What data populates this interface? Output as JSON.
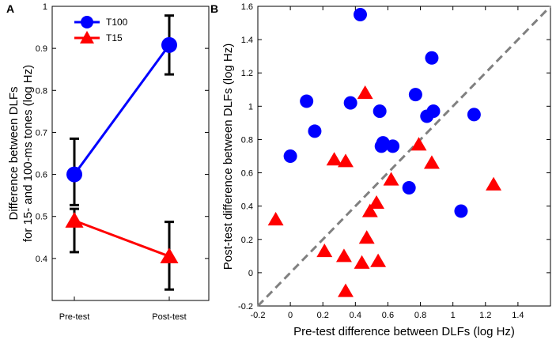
{
  "chart_data": [
    {
      "panel": "A",
      "type": "line",
      "categories": [
        "Pre-test",
        "Post-test"
      ],
      "ylabel_line1": "Difference between DLFs",
      "ylabel_line2": "for 15- and 100-ms tones (log Hz)",
      "ylim": [
        0.3,
        1.0
      ],
      "yticks": [
        "0.4",
        "0.5",
        "0.6",
        "0.7",
        "0.8",
        "0.9",
        "1"
      ],
      "tick_values": [
        0.4,
        0.5,
        0.6,
        0.7,
        0.8,
        0.9,
        1.0
      ],
      "series": [
        {
          "name": "T100",
          "color": "#0000ff",
          "marker": "circle",
          "values": [
            0.6,
            0.908
          ],
          "err_low": [
            0.527,
            0.838
          ],
          "err_high": [
            0.685,
            0.978
          ]
        },
        {
          "name": "T15",
          "color": "#ff0000",
          "marker": "triangle",
          "values": [
            0.49,
            0.405
          ],
          "err_low": [
            0.415,
            0.326
          ],
          "err_high": [
            0.518,
            0.487
          ]
        }
      ]
    },
    {
      "panel": "B",
      "type": "scatter",
      "xlabel": "Pre-test difference between DLFs (log Hz)",
      "ylabel": "Post-test difference between DLFs (log Hz)",
      "xlim": [
        -0.2,
        1.6
      ],
      "ylim": [
        -0.2,
        1.6
      ],
      "xticks": [
        "-0.2",
        "0",
        "0.2",
        "0.4",
        "0.6",
        "0.8",
        "1",
        "1.2",
        "1.4"
      ],
      "xtick_values": [
        -0.2,
        0,
        0.2,
        0.4,
        0.6,
        0.8,
        1.0,
        1.2,
        1.4
      ],
      "yticks": [
        "-0.2",
        "0",
        "0.2",
        "0.4",
        "0.6",
        "0.8",
        "1",
        "1.2",
        "1.4",
        "1.6"
      ],
      "ytick_values": [
        -0.2,
        0,
        0.2,
        0.4,
        0.6,
        0.8,
        1.0,
        1.2,
        1.4,
        1.6
      ],
      "identity_line": true,
      "series": [
        {
          "name": "T100",
          "color": "#0000ff",
          "marker": "circle",
          "points": [
            [
              0.43,
              1.55
            ],
            [
              0.87,
              1.29
            ],
            [
              0.1,
              1.03
            ],
            [
              0.37,
              1.02
            ],
            [
              0.77,
              1.07
            ],
            [
              0.55,
              0.97
            ],
            [
              0.88,
              0.97
            ],
            [
              0.84,
              0.94
            ],
            [
              1.13,
              0.95
            ],
            [
              0.15,
              0.85
            ],
            [
              0.0,
              0.7
            ],
            [
              0.57,
              0.78
            ],
            [
              0.56,
              0.76
            ],
            [
              0.63,
              0.76
            ],
            [
              0.73,
              0.51
            ],
            [
              1.05,
              0.37
            ]
          ]
        },
        {
          "name": "T15",
          "color": "#ff0000",
          "marker": "triangle",
          "points": [
            [
              0.46,
              1.08
            ],
            [
              0.27,
              0.68
            ],
            [
              0.34,
              0.67
            ],
            [
              0.79,
              0.77
            ],
            [
              0.87,
              0.66
            ],
            [
              0.62,
              0.56
            ],
            [
              1.25,
              0.53
            ],
            [
              0.53,
              0.42
            ],
            [
              0.49,
              0.37
            ],
            [
              -0.09,
              0.32
            ],
            [
              0.47,
              0.21
            ],
            [
              0.21,
              0.13
            ],
            [
              0.33,
              0.1
            ],
            [
              0.44,
              0.06
            ],
            [
              0.54,
              0.07
            ],
            [
              0.34,
              -0.11
            ]
          ]
        }
      ]
    }
  ]
}
